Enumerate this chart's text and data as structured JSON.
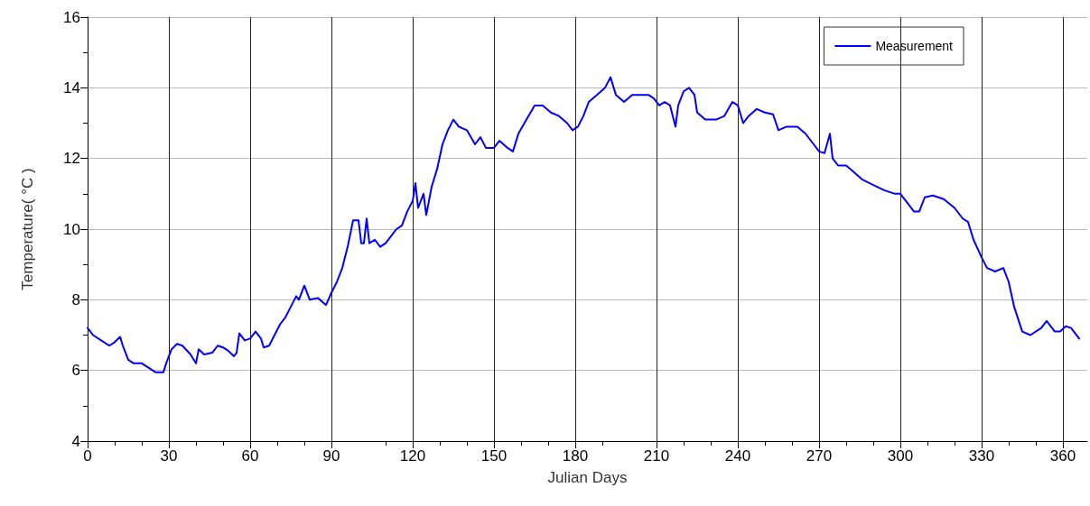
{
  "chart_data": {
    "type": "line",
    "xlabel": "Julian Days",
    "ylabel": "Temperature( °C )",
    "xlim": [
      0,
      369
    ],
    "xticks": [
      0,
      30,
      60,
      90,
      120,
      150,
      180,
      210,
      240,
      270,
      300,
      330,
      360
    ],
    "ylim": [
      4,
      16
    ],
    "yticks": [
      4,
      6,
      8,
      10,
      12,
      14,
      16
    ],
    "grid": true,
    "legend": "top right",
    "series": [
      {
        "name": "Measurement",
        "color": "#0000ff",
        "x": [
          0,
          2,
          5,
          8,
          10,
          12,
          13,
          15,
          17,
          20,
          23,
          25,
          28,
          29,
          31,
          33,
          35,
          38,
          40,
          41,
          43,
          46,
          48,
          50,
          52,
          54,
          55,
          56,
          58,
          60,
          62,
          64,
          65,
          67,
          69,
          71,
          73,
          75,
          77,
          78,
          80,
          82,
          85,
          88,
          90,
          92,
          94,
          96,
          98,
          100,
          101,
          102,
          103,
          104,
          106,
          108,
          110,
          112,
          114,
          116,
          118,
          120,
          121,
          122,
          124,
          125,
          127,
          129,
          131,
          133,
          135,
          137,
          140,
          143,
          145,
          147,
          150,
          152,
          155,
          157,
          159,
          162,
          165,
          168,
          171,
          174,
          177,
          179,
          181,
          183,
          185,
          188,
          191,
          193,
          195,
          198,
          201,
          204,
          207,
          209,
          211,
          213,
          215,
          217,
          218,
          220,
          222,
          224,
          225,
          228,
          232,
          235,
          238,
          240,
          242,
          244,
          247,
          250,
          253,
          255,
          258,
          262,
          265,
          268,
          270,
          272,
          274,
          275,
          277,
          280,
          283,
          286,
          290,
          294,
          298,
          300,
          302,
          305,
          307,
          309,
          312,
          316,
          320,
          323,
          325,
          327,
          330,
          332,
          335,
          338,
          340,
          342,
          345,
          348,
          352,
          354,
          357,
          359,
          361,
          363,
          366
        ],
        "values": [
          7.2,
          7.0,
          6.85,
          6.7,
          6.8,
          6.95,
          6.7,
          6.3,
          6.2,
          6.2,
          6.05,
          5.95,
          5.95,
          6.2,
          6.6,
          6.75,
          6.7,
          6.45,
          6.2,
          6.6,
          6.45,
          6.5,
          6.7,
          6.65,
          6.55,
          6.4,
          6.5,
          7.05,
          6.85,
          6.9,
          7.1,
          6.9,
          6.65,
          6.7,
          7.0,
          7.3,
          7.5,
          7.8,
          8.1,
          8.0,
          8.4,
          8.0,
          8.05,
          7.85,
          8.2,
          8.5,
          8.9,
          9.5,
          10.25,
          10.25,
          9.6,
          9.6,
          10.3,
          9.6,
          9.7,
          9.5,
          9.6,
          9.8,
          10.0,
          10.1,
          10.5,
          10.8,
          11.3,
          10.6,
          11.0,
          10.4,
          11.2,
          11.7,
          12.4,
          12.8,
          13.1,
          12.9,
          12.8,
          12.4,
          12.6,
          12.3,
          12.3,
          12.5,
          12.3,
          12.2,
          12.7,
          13.1,
          13.5,
          13.5,
          13.3,
          13.2,
          13.0,
          12.8,
          12.9,
          13.2,
          13.6,
          13.8,
          14.0,
          14.3,
          13.8,
          13.6,
          13.8,
          13.8,
          13.8,
          13.7,
          13.5,
          13.6,
          13.5,
          12.9,
          13.5,
          13.9,
          14.0,
          13.8,
          13.3,
          13.1,
          13.1,
          13.2,
          13.6,
          13.5,
          13.0,
          13.2,
          13.4,
          13.3,
          13.25,
          12.8,
          12.9,
          12.9,
          12.7,
          12.4,
          12.2,
          12.15,
          12.7,
          12.0,
          11.8,
          11.8,
          11.6,
          11.4,
          11.25,
          11.1,
          11.0,
          11.0,
          10.8,
          10.5,
          10.5,
          10.9,
          10.95,
          10.85,
          10.6,
          10.3,
          10.2,
          9.7,
          9.2,
          8.9,
          8.8,
          8.9,
          8.5,
          7.8,
          7.1,
          7.0,
          7.2,
          7.4,
          7.1,
          7.1,
          7.25,
          7.2,
          6.9
        ]
      }
    ]
  }
}
